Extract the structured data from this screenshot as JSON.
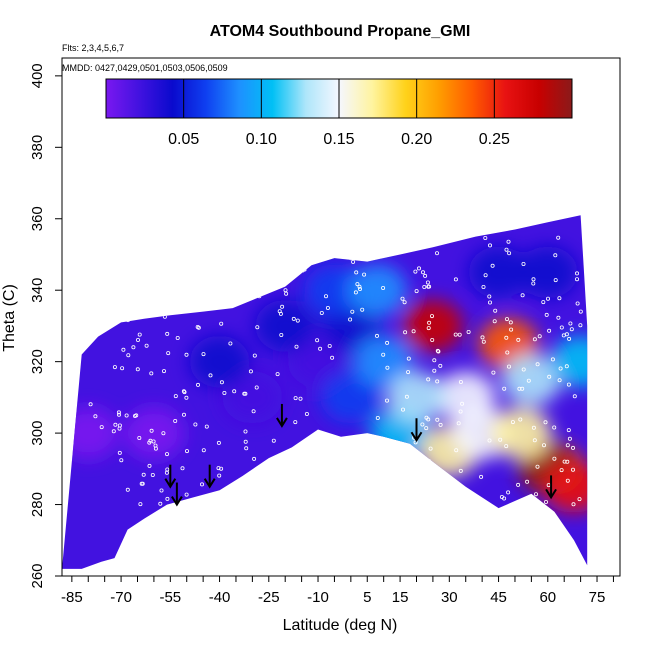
{
  "chart_data": {
    "type": "heatmap",
    "title": "ATOM4 Southbound Propane_GMI",
    "flights_note": "Flts: 2,3,4,5,6,7",
    "dates_note": "MMDD: 0427,0429,0501,0503,0506,0509",
    "xlabel": "Latitude (deg N)",
    "ylabel": "Theta (C)",
    "xlim": [
      -88,
      82
    ],
    "ylim": [
      260,
      405
    ],
    "x_ticks": [
      -85,
      -70,
      -55,
      -40,
      -25,
      -10,
      5,
      15,
      30,
      45,
      60,
      75
    ],
    "y_ticks": [
      260,
      280,
      300,
      320,
      340,
      360,
      380,
      400
    ],
    "colorbar": {
      "range": [
        0.0,
        0.3
      ],
      "ticks": [
        0.05,
        0.1,
        0.15,
        0.2,
        0.25
      ],
      "tick_labels": [
        "0.05",
        "0.10",
        "0.15",
        "0.20",
        "0.25"
      ],
      "colors": [
        "#7a18f0",
        "#4212e0",
        "#0a0acd",
        "#0f3ff0",
        "#1e90ff",
        "#00c0f5",
        "#aee6fa",
        "#f5f7ff",
        "#fff4a0",
        "#ffd21a",
        "#ff9e00",
        "#ff5a00",
        "#e81212",
        "#c80000",
        "#8b1a1a"
      ]
    },
    "domain_top": [
      [
        -82,
        322
      ],
      [
        -77,
        327
      ],
      [
        -70,
        331
      ],
      [
        -63,
        332
      ],
      [
        -55,
        333
      ],
      [
        -45,
        334
      ],
      [
        -36,
        335
      ],
      [
        -28,
        338
      ],
      [
        -20,
        341
      ],
      [
        -12,
        347
      ],
      [
        -5,
        349
      ],
      [
        5,
        348
      ],
      [
        15,
        350
      ],
      [
        25,
        352
      ],
      [
        38,
        355
      ],
      [
        50,
        357
      ],
      [
        60,
        359
      ],
      [
        70,
        361
      ],
      [
        72,
        330
      ]
    ],
    "domain_bottom": [
      [
        72,
        263
      ],
      [
        68,
        270
      ],
      [
        62,
        278
      ],
      [
        55,
        283
      ],
      [
        45,
        279
      ],
      [
        35,
        285
      ],
      [
        25,
        292
      ],
      [
        18,
        297
      ],
      [
        10,
        299
      ],
      [
        5,
        300
      ],
      [
        -3,
        299
      ],
      [
        -10,
        301
      ],
      [
        -18,
        296
      ],
      [
        -25,
        293
      ],
      [
        -33,
        288
      ],
      [
        -40,
        284
      ],
      [
        -48,
        282
      ],
      [
        -56,
        280
      ],
      [
        -63,
        276
      ],
      [
        -68,
        273
      ],
      [
        -72,
        265
      ],
      [
        -76,
        264
      ],
      [
        -82,
        262
      ],
      [
        -88,
        262
      ]
    ],
    "field_cells": [
      {
        "x": -80,
        "y": 300,
        "value": 0.01
      },
      {
        "x": -60,
        "y": 300,
        "value": 0.01
      },
      {
        "x": -30,
        "y": 310,
        "value": 0.02
      },
      {
        "x": -10,
        "y": 320,
        "value": 0.03
      },
      {
        "x": 0,
        "y": 330,
        "value": 0.04
      },
      {
        "x": -40,
        "y": 320,
        "value": 0.05
      },
      {
        "x": 0,
        "y": 310,
        "value": 0.06
      },
      {
        "x": -20,
        "y": 330,
        "value": 0.05
      },
      {
        "x": 10,
        "y": 320,
        "value": 0.08
      },
      {
        "x": 15,
        "y": 300,
        "value": 0.11
      },
      {
        "x": 35,
        "y": 310,
        "value": 0.14
      },
      {
        "x": 30,
        "y": 295,
        "value": 0.17
      },
      {
        "x": 25,
        "y": 330,
        "value": 0.26
      },
      {
        "x": 48,
        "y": 325,
        "value": 0.23
      },
      {
        "x": 62,
        "y": 290,
        "value": 0.22
      },
      {
        "x": 60,
        "y": 290,
        "value": 0.29
      },
      {
        "x": 68,
        "y": 285,
        "value": 0.24
      },
      {
        "x": 45,
        "y": 345,
        "value": 0.05
      },
      {
        "x": 60,
        "y": 345,
        "value": 0.04
      },
      {
        "x": 40,
        "y": 300,
        "value": 0.15
      },
      {
        "x": 55,
        "y": 315,
        "value": 0.12
      },
      {
        "x": 70,
        "y": 320,
        "value": 0.1
      },
      {
        "x": 20,
        "y": 310,
        "value": 0.12
      },
      {
        "x": 52,
        "y": 300,
        "value": 0.16
      },
      {
        "x": -5,
        "y": 340,
        "value": 0.07
      },
      {
        "x": 8,
        "y": 340,
        "value": 0.09
      }
    ],
    "arrows_lat": [
      -55,
      -53,
      -43,
      -21,
      20,
      61
    ],
    "arrows_theta": [
      285,
      280,
      285,
      302,
      298,
      282
    ]
  }
}
